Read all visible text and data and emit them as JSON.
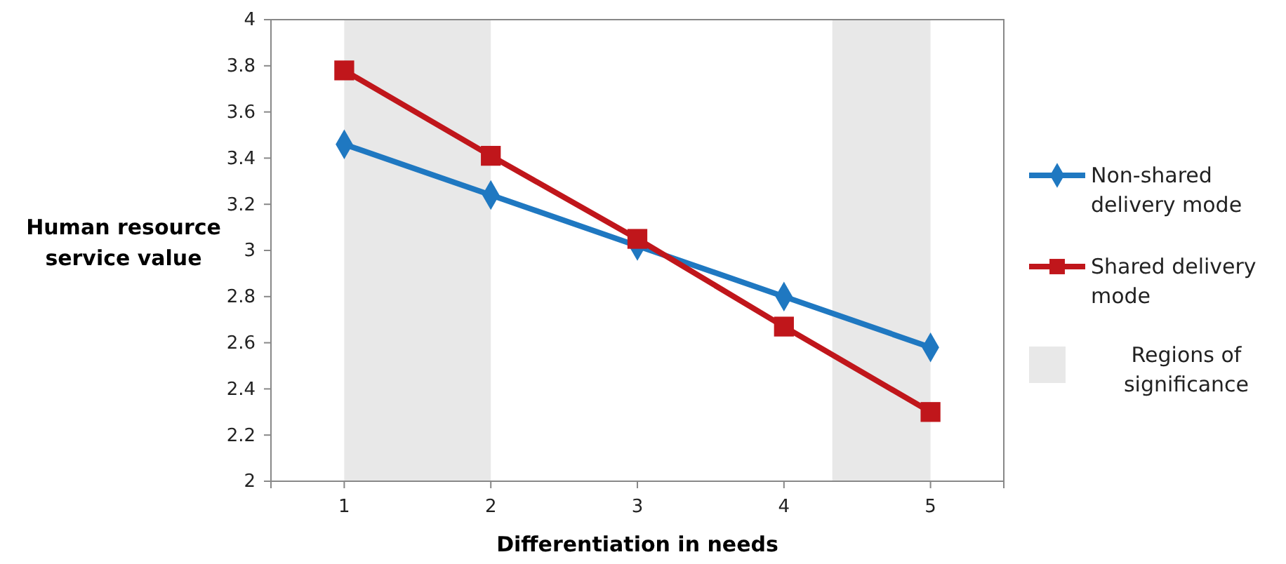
{
  "chart_data": {
    "type": "line",
    "xlabel": "Differentiation in needs",
    "ylabel": "Human resource service value",
    "x": [
      1,
      2,
      3,
      4,
      5
    ],
    "xlim": [
      0.5,
      5.5
    ],
    "xticks": [
      1,
      2,
      3,
      4,
      5
    ],
    "ylim": [
      2,
      4
    ],
    "yticks": [
      2,
      2.2,
      2.4,
      2.6,
      2.8,
      3,
      3.2,
      3.4,
      3.6,
      3.8,
      4
    ],
    "series": [
      {
        "name": "Non-shared delivery mode",
        "color": "#1f78c1",
        "marker": "diamond",
        "values": [
          3.46,
          3.24,
          3.02,
          2.8,
          2.58
        ]
      },
      {
        "name": "Shared delivery mode",
        "color": "#c0161b",
        "marker": "square",
        "values": [
          3.78,
          3.41,
          3.05,
          2.67,
          2.3
        ]
      }
    ],
    "bands": [
      {
        "axis": "x",
        "from": 1,
        "to": 2,
        "color": "#e8e8e8"
      },
      {
        "axis": "x",
        "from": 4.33,
        "to": 5,
        "color": "#e8e8e8"
      }
    ],
    "annotations": [
      "Regions of significance"
    ],
    "grid": false,
    "legend": "right"
  }
}
